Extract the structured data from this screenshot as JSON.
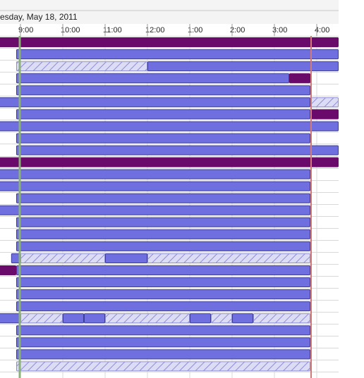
{
  "header": {
    "date": "esday, May 18, 2011"
  },
  "time_axis": {
    "labels": [
      "9:00",
      "10:00",
      "11:00",
      "12:00",
      "1:00",
      "2:00",
      "3:00",
      "4:00"
    ]
  },
  "colors": {
    "busy": "#6f6fe0",
    "busy_border": "#3d3d9a",
    "out_of_office": "#6a0a6a",
    "tentative_bg": "#dcdcf4",
    "tentative_line": "#8e8ed6",
    "workday_start_line": "#8bb07a",
    "workday_end_line": "#d27a7a",
    "grid": "#d8d8d8"
  },
  "schedule": {
    "rows": [
      [
        {
          "s": -2,
          "e": 16.9,
          "t": "oof"
        }
      ],
      [
        {
          "s": 8.9,
          "e": 16.95,
          "t": "busy"
        }
      ],
      [
        {
          "s": 8.9,
          "e": 12.0,
          "t": "tent"
        },
        {
          "s": 12.0,
          "e": 16.9,
          "t": "busy"
        }
      ],
      [
        {
          "s": 8.9,
          "e": 15.35,
          "t": "busy"
        },
        {
          "s": 15.35,
          "e": 15.85,
          "t": "oof"
        }
      ],
      [
        {
          "s": 8.9,
          "e": 15.85,
          "t": "busy"
        }
      ],
      [
        {
          "s": -2,
          "e": 15.85,
          "t": "busy"
        },
        {
          "s": 15.85,
          "e": 16.9,
          "t": "tent"
        }
      ],
      [
        {
          "s": 8.9,
          "e": 15.85,
          "t": "busy"
        },
        {
          "s": 15.85,
          "e": 16.9,
          "t": "oof"
        }
      ],
      [
        {
          "s": -2,
          "e": 16.9,
          "t": "busy"
        }
      ],
      [
        {
          "s": 8.9,
          "e": 15.85,
          "t": "busy"
        }
      ],
      [
        {
          "s": 8.9,
          "e": 16.95,
          "t": "busy"
        }
      ],
      [
        {
          "s": -2,
          "e": 16.9,
          "t": "oof"
        }
      ],
      [
        {
          "s": -2,
          "e": 15.85,
          "t": "busy"
        }
      ],
      [
        {
          "s": -2,
          "e": 15.85,
          "t": "busy"
        }
      ],
      [
        {
          "s": 8.9,
          "e": 15.85,
          "t": "busy"
        }
      ],
      [
        {
          "s": -2,
          "e": 15.85,
          "t": "busy"
        }
      ],
      [
        {
          "s": 8.9,
          "e": 15.85,
          "t": "busy"
        }
      ],
      [
        {
          "s": 8.9,
          "e": 15.85,
          "t": "busy"
        }
      ],
      [
        {
          "s": 8.9,
          "e": 15.85,
          "t": "busy"
        }
      ],
      [
        {
          "s": 8.78,
          "e": 9.0,
          "t": "busy"
        },
        {
          "s": 9.0,
          "e": 11.0,
          "t": "tent"
        },
        {
          "s": 11.0,
          "e": 12.0,
          "t": "busy"
        },
        {
          "s": 12.0,
          "e": 15.85,
          "t": "tent"
        }
      ],
      [
        {
          "s": -2,
          "e": 8.9,
          "t": "oof"
        },
        {
          "s": 8.9,
          "e": 15.85,
          "t": "busy"
        }
      ],
      [
        {
          "s": 8.9,
          "e": 15.85,
          "t": "busy"
        }
      ],
      [
        {
          "s": 8.9,
          "e": 15.85,
          "t": "busy"
        }
      ],
      [
        {
          "s": 8.9,
          "e": 15.85,
          "t": "busy"
        }
      ],
      [
        {
          "s": -2,
          "e": 9.0,
          "t": "busy"
        },
        {
          "s": 9.0,
          "e": 10.0,
          "t": "tent"
        },
        {
          "s": 10.0,
          "e": 10.5,
          "t": "busy"
        },
        {
          "s": 10.5,
          "e": 11.0,
          "t": "busy"
        },
        {
          "s": 11.0,
          "e": 13.0,
          "t": "tent"
        },
        {
          "s": 13.0,
          "e": 13.5,
          "t": "busy"
        },
        {
          "s": 13.5,
          "e": 14.0,
          "t": "tent"
        },
        {
          "s": 14.0,
          "e": 14.5,
          "t": "busy"
        },
        {
          "s": 14.5,
          "e": 15.85,
          "t": "tent"
        }
      ],
      [
        {
          "s": 8.9,
          "e": 15.85,
          "t": "busy"
        }
      ],
      [
        {
          "s": 8.9,
          "e": 15.85,
          "t": "busy"
        }
      ],
      [
        {
          "s": 8.9,
          "e": 15.85,
          "t": "busy"
        }
      ],
      [
        {
          "s": 8.9,
          "e": 15.85,
          "t": "tent"
        }
      ]
    ],
    "workday_start": 9.0,
    "workday_end": 15.85
  }
}
